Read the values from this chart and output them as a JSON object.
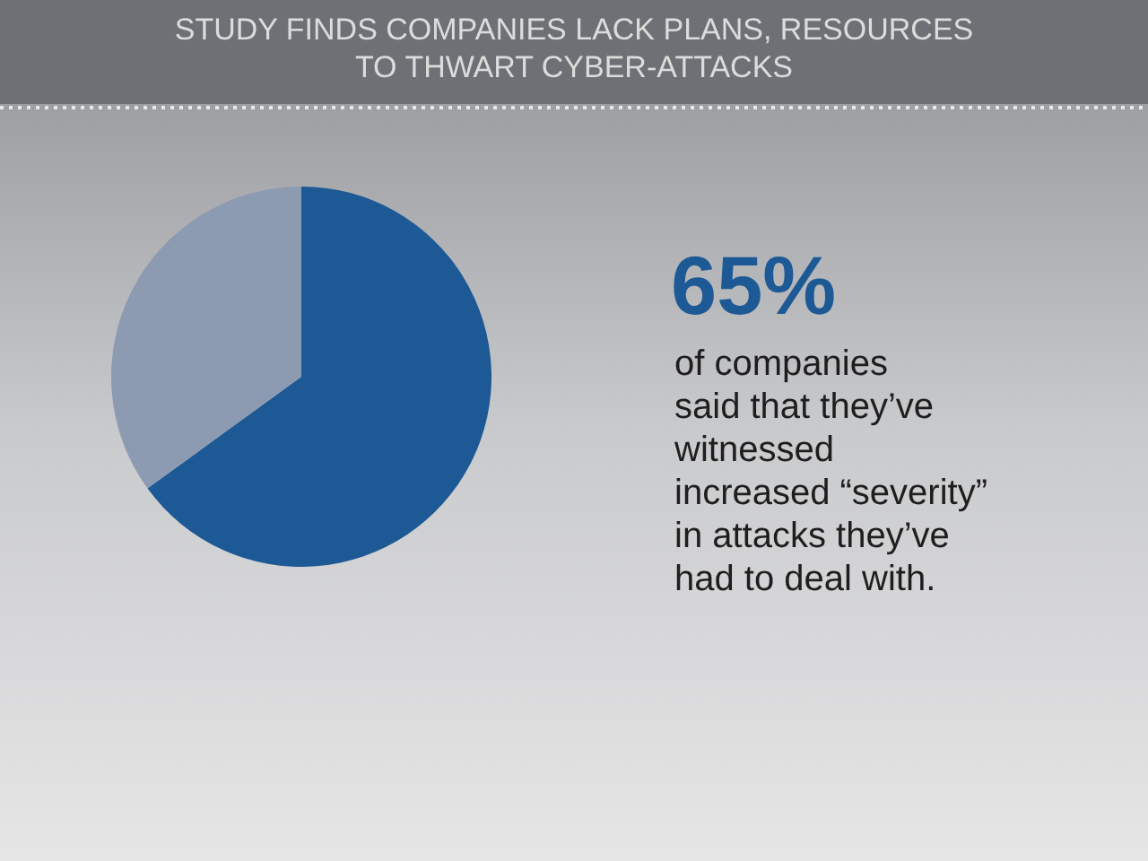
{
  "chart_data": {
    "type": "pie",
    "title": "STUDY FINDS COMPANIES LACK PLANS, RESOURCES\nTO THWART CYBER-ATTACKS",
    "categories": [
      null,
      null
    ],
    "values": [
      65,
      35
    ],
    "colors": [
      "#1d5995",
      "#8c9bb1"
    ],
    "annotations": [
      "65%",
      "of companies\nsaid that they’ve\nwitnessed\nincreased “severity”\nin attacks they’ve\nhad to deal with."
    ]
  }
}
